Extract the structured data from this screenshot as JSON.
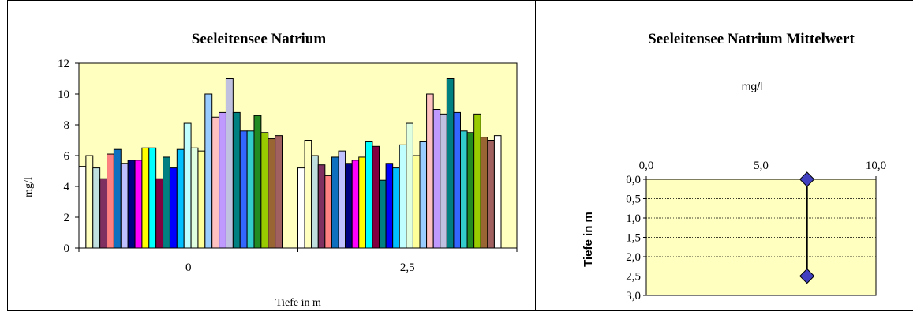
{
  "chart_data": [
    {
      "type": "bar",
      "title": "Seeleitensee Natrium",
      "xlabel": "Tiefe in m",
      "ylabel": "mg/l",
      "ylim": [
        0,
        12
      ],
      "yticks": [
        "0",
        "2",
        "4",
        "6",
        "8",
        "10",
        "12"
      ],
      "categories": [
        "0",
        "2,5"
      ],
      "plot_background": "#ffffc0",
      "series_colors": [
        "#ffffff",
        "#ffffc0",
        "#c0ffff",
        "#800080",
        "#ff8080",
        "#0080c0",
        "#c0c0ff",
        "#000080",
        "#ff00ff",
        "#ffff00",
        "#00ffff",
        "#800000",
        "#008080",
        "#0000ff",
        "#00c0ff",
        "#c0ffff",
        "#c0ffc0",
        "#ffff99",
        "#99ccff",
        "#ff99cc",
        "#cc99ff",
        "#ffcc99",
        "#3366ff",
        "#33cccc",
        "#99cc00"
      ],
      "series_colors_main": [
        "#ffffff",
        "#ffffc0",
        "#c0e0e0",
        "#803060",
        "#ff8080",
        "#1070c0",
        "#c0c0ff",
        "#000080",
        "#ff00ff",
        "#ffff00",
        "#00ffff",
        "#800040",
        "#008080",
        "#0000ff",
        "#00c0ff",
        "#c0ffff",
        "#e0ffe0",
        "#ffff99",
        "#99ccff",
        "#ffc0c0",
        "#c099ff",
        "#c0c0e0",
        "#008080",
        "#3366ff",
        "#33cccc",
        "#228b22",
        "#99cc00",
        "#996633",
        "#a06060"
      ],
      "values": [
        [
          5.3,
          6.0,
          5.2,
          4.5,
          6.1,
          6.4,
          5.5,
          5.7,
          5.7,
          6.5,
          6.5,
          4.5,
          5.9,
          5.2,
          6.4,
          8.1,
          6.5,
          6.3,
          10.0,
          8.5,
          8.8,
          11.0,
          8.8,
          7.6,
          7.6,
          8.6,
          7.5,
          7.1,
          7.3
        ],
        [
          5.2,
          7.0,
          6.0,
          5.4,
          4.7,
          5.9,
          6.3,
          5.5,
          5.7,
          5.9,
          6.9,
          6.6,
          4.4,
          5.5,
          5.2,
          6.7,
          8.1,
          6.0,
          6.9,
          10.0,
          9.0,
          8.7,
          11.0,
          8.8,
          7.6,
          7.5,
          8.7,
          7.2,
          7.0,
          7.3
        ]
      ],
      "grid": false
    },
    {
      "type": "line",
      "title": "Seeleitensee Natrium Mittelwert",
      "xlabel": "mg/l",
      "ylabel": "Tiefe in m",
      "xlim": [
        0,
        10
      ],
      "xticks": [
        "0,0",
        "5,0",
        "10,0"
      ],
      "ylim": [
        0,
        3
      ],
      "yticks": [
        "0,0",
        "0,5",
        "1,0",
        "1,5",
        "2,0",
        "2,5",
        "3,0"
      ],
      "y_inverted": true,
      "plot_background": "#ffffc0",
      "grid": true,
      "marker_color": "#4040c0",
      "points": [
        {
          "x": 7.0,
          "y": 0.0
        },
        {
          "x": 7.0,
          "y": 2.5
        }
      ]
    }
  ]
}
